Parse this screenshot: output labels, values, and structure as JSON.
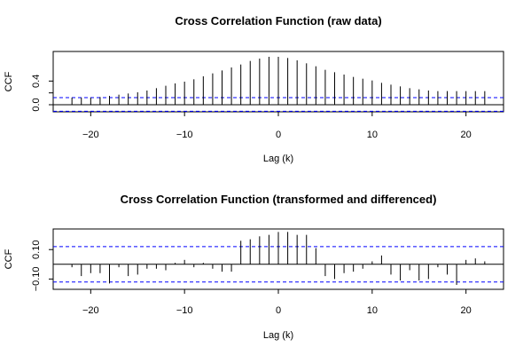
{
  "chart_data": [
    {
      "type": "bar",
      "title": "Cross Correlation Function (raw data)",
      "xlabel": "Lag (k)",
      "ylabel": "CCF",
      "xlim": [
        -24,
        24
      ],
      "ylim": [
        -0.12,
        0.9
      ],
      "x_ticks": [
        -20,
        -10,
        0,
        10,
        20
      ],
      "x_tick_labels": [
        "−20",
        "−10",
        "0",
        "10",
        "20"
      ],
      "y_ticks": [
        0.0,
        0.2,
        0.4
      ],
      "y_tick_labels": [
        "0.0",
        "0.4"
      ],
      "ci_upper": 0.12,
      "ci_lower": -0.11,
      "ci_color": "#0000ff",
      "bar_color": "#000000",
      "grid": false,
      "x": [
        -22,
        -21,
        -20,
        -19,
        -18,
        -17,
        -16,
        -15,
        -14,
        -13,
        -12,
        -11,
        -10,
        -9,
        -8,
        -7,
        -6,
        -5,
        -4,
        -3,
        -2,
        -1,
        0,
        1,
        2,
        3,
        4,
        5,
        6,
        7,
        8,
        9,
        10,
        11,
        12,
        13,
        14,
        15,
        16,
        17,
        18,
        19,
        20,
        21,
        22
      ],
      "values": [
        0.12,
        0.12,
        0.12,
        0.13,
        0.15,
        0.17,
        0.19,
        0.21,
        0.24,
        0.28,
        0.32,
        0.36,
        0.39,
        0.43,
        0.48,
        0.53,
        0.58,
        0.63,
        0.68,
        0.74,
        0.78,
        0.81,
        0.81,
        0.79,
        0.75,
        0.7,
        0.65,
        0.59,
        0.55,
        0.51,
        0.47,
        0.44,
        0.41,
        0.37,
        0.34,
        0.31,
        0.28,
        0.26,
        0.24,
        0.23,
        0.23,
        0.23,
        0.23,
        0.23,
        0.23
      ]
    },
    {
      "type": "bar",
      "title": "Cross Correlation Function (transformed and differenced)",
      "xlabel": "Lag (k)",
      "ylabel": "CCF",
      "xlim": [
        -24,
        24
      ],
      "ylim": [
        -0.17,
        0.24
      ],
      "x_ticks": [
        -20,
        -10,
        0,
        10,
        20
      ],
      "x_tick_labels": [
        "−20",
        "−10",
        "0",
        "10",
        "20"
      ],
      "y_ticks": [
        -0.1,
        0.1
      ],
      "y_tick_labels": [
        "−0.10",
        "0.10"
      ],
      "ci_upper": 0.12,
      "ci_lower": -0.12,
      "ci_color": "#0000ff",
      "bar_color": "#000000",
      "grid": false,
      "x": [
        -22,
        -21,
        -20,
        -19,
        -18,
        -17,
        -16,
        -15,
        -14,
        -13,
        -12,
        -11,
        -10,
        -9,
        -8,
        -7,
        -6,
        -5,
        -4,
        -3,
        -2,
        -1,
        0,
        1,
        2,
        3,
        4,
        5,
        6,
        7,
        8,
        9,
        10,
        11,
        12,
        13,
        14,
        15,
        16,
        17,
        18,
        19,
        20,
        21,
        22
      ],
      "values": [
        -0.02,
        -0.08,
        -0.06,
        -0.06,
        -0.13,
        -0.02,
        -0.08,
        -0.07,
        -0.03,
        -0.03,
        -0.04,
        0.01,
        0.03,
        -0.02,
        0.01,
        -0.03,
        -0.05,
        -0.05,
        0.16,
        0.17,
        0.19,
        0.2,
        0.22,
        0.22,
        0.2,
        0.2,
        0.11,
        -0.08,
        -0.1,
        -0.06,
        -0.05,
        -0.03,
        0.02,
        0.06,
        -0.07,
        -0.11,
        -0.04,
        -0.11,
        -0.1,
        -0.02,
        -0.07,
        -0.14,
        0.03,
        0.04,
        0.02
      ]
    }
  ]
}
